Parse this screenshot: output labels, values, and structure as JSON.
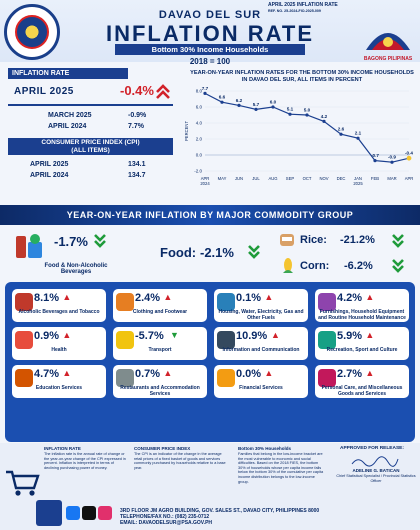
{
  "header": {
    "release": "APRIL 2025      INFLATION RATE",
    "release_ref": "REF. NO. 25-2024-FIO-2025-009",
    "province": "DAVAO DEL SUR",
    "title": "INFLATION RATE",
    "subtitle": "Bottom 30% Income Households",
    "base": "2018 = 100",
    "logo_right_text": "BAGONG PILIPINAS"
  },
  "inflation": {
    "label": "INFLATION RATE",
    "current_period": "APRIL 2025",
    "current_value": "-0.4%",
    "rows": [
      {
        "period": "MARCH 2025",
        "value": "-0.9%"
      },
      {
        "period": "APRIL 2024",
        "value": "7.7%"
      }
    ]
  },
  "cpi": {
    "label": "CONSUMER PRICE INDEX (CPI)",
    "label2": "(ALL ITEMS)",
    "rows": [
      {
        "period": "APRIL 2025",
        "value": "134.1"
      },
      {
        "period": "APRIL 2024",
        "value": "134.7"
      }
    ]
  },
  "chart_data": {
    "type": "line",
    "title": "YEAR-ON-YEAR INFLATION RATES FOR THE BOTTOM 30% INCOME HOUSEHOLDS IN DAVAO DEL SUR, ALL ITEMS IN PERCENT",
    "ylabel": "PERCENT",
    "x": [
      "APR 2024",
      "MAY",
      "JUN",
      "JUL",
      "AUG",
      "SEP",
      "OCT",
      "NOV",
      "DEC",
      "JAN 2025",
      "FEB",
      "MAR",
      "APR"
    ],
    "values": [
      7.7,
      6.6,
      6.2,
      5.7,
      6.0,
      5.1,
      5.0,
      4.2,
      2.6,
      2.1,
      -0.7,
      -0.9,
      -0.4
    ],
    "labels": [
      "7.7",
      "6.6",
      "6.2",
      "5.7",
      "6.0",
      "5.1",
      "5.0",
      "4.2",
      "2.6",
      "2.1",
      "-0.7",
      "-0.9",
      "-0.4"
    ],
    "yticks": [
      "8.0",
      "6.0",
      "4.0",
      "2.0",
      "0.0",
      "-2.0"
    ],
    "ylim": [
      -2,
      8
    ],
    "color": "#1b3f8f"
  },
  "band_title": "YEAR-ON-YEAR INFLATION BY MAJOR COMMODITY GROUP",
  "highlights": {
    "food_nab": {
      "value": "-1.7%",
      "label": "Food & Non-Alcoholic Beverages"
    },
    "food": {
      "label": "Food:",
      "value": "-2.1%"
    },
    "rice": {
      "label": "Rice:",
      "value": "-21.2%"
    },
    "corn": {
      "label": "Corn:",
      "value": "-6.2%"
    }
  },
  "groups": [
    {
      "value": "8.1%",
      "label": "Alcoholic Beverages and Tobacco",
      "dir": "up",
      "icon": "bottle-icon",
      "color": "#c0392b"
    },
    {
      "value": "2.4%",
      "label": "Clothing and Footwear",
      "dir": "up",
      "icon": "shirt-icon",
      "color": "#e67e22"
    },
    {
      "value": "0.1%",
      "label": "Housing, Water, Electricity, Gas and Other Fuels",
      "dir": "up",
      "icon": "house-icon",
      "color": "#2980b9"
    },
    {
      "value": "4.2%",
      "label": "Furnishings, Household Equipment and Routine Household Maintenance",
      "dir": "up",
      "icon": "sofa-icon",
      "color": "#8e44ad"
    },
    {
      "value": "0.9%",
      "label": "Health",
      "dir": "up",
      "icon": "heart-icon",
      "color": "#e74c3c"
    },
    {
      "value": "-5.7%",
      "label": "Transport",
      "dir": "down",
      "icon": "bus-icon",
      "color": "#f1c40f"
    },
    {
      "value": "10.9%",
      "label": "Information and Communication",
      "dir": "up",
      "icon": "phone-icon",
      "color": "#34495e"
    },
    {
      "value": "5.9%",
      "label": "Recreation, Sport and Culture",
      "dir": "up",
      "icon": "ball-icon",
      "color": "#16a085"
    },
    {
      "value": "4.7%",
      "label": "Education Services",
      "dir": "up",
      "icon": "book-icon",
      "color": "#d35400"
    },
    {
      "value": "0.7%",
      "label": "Restaurants and Accommodation Services",
      "dir": "up",
      "icon": "dish-icon",
      "color": "#7f8c8d"
    },
    {
      "value": "0.0%",
      "label": "Financial Services",
      "dir": "up",
      "icon": "coin-icon",
      "color": "#f39c12"
    },
    {
      "value": "2.7%",
      "label": "Personal Care, and Miscellaneous Goods and Services",
      "dir": "up",
      "icon": "care-icon",
      "color": "#c2185b"
    }
  ],
  "footer": {
    "def1_title": "INFLATION RATE",
    "def1_text": "The inflation rate is the annual rate of change or the year-on-year change of the CPI expressed in percent. Inflation is interpreted in terms of declining purchasing power of money.",
    "def2_title": "CONSUMER PRICE INDEX",
    "def2_text": "The CPI is an indicator of the change in the average retail prices of a fixed basket of goods and services commonly purchased by households relative to a base year.",
    "def3_title": "Bottom 30% Households",
    "def3_text": "Families that belong in the low-income bracket are the most vulnerable to economic and social difficulties. Based on the 2018 FIES, the bottom 30% of households whose per capita income falls below the bottom 30% of the cumulative per capita income distribution belongs to the low-income group.",
    "approved_label": "APPROVED FOR RELEASE:",
    "signatory": "ADELINE G. BATICAN",
    "signatory_title": "Chief Statistical Specialist / Provincial Statistics Officer",
    "address": "3RD FLOOR JM AGRO BUILDING, GOV. SALES ST., DAVAO CITY, PHILIPPINES 8000",
    "phone": "TELEPHONE/FAX NO.: (082) 235-0712",
    "email": "EMAIL: DAVAODELSUR@PSA.GOV.PH"
  }
}
